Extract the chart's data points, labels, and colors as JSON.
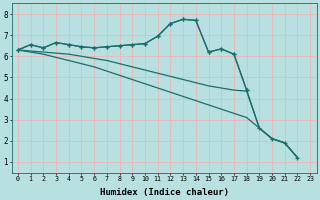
{
  "bg_color": "#b8e0e0",
  "grid_color": "#e8b8b8",
  "line_color": "#1a6e6e",
  "xlabel": "Humidex (Indice chaleur)",
  "xlim": [
    -0.5,
    23.5
  ],
  "ylim": [
    0.5,
    8.5
  ],
  "xticks": [
    0,
    1,
    2,
    3,
    4,
    5,
    6,
    7,
    8,
    9,
    10,
    11,
    12,
    13,
    14,
    15,
    16,
    17,
    18,
    19,
    20,
    21,
    22,
    23
  ],
  "yticks": [
    1,
    2,
    3,
    4,
    5,
    6,
    7,
    8
  ],
  "lines": [
    {
      "x": [
        0,
        1,
        2,
        3,
        4,
        5,
        6,
        7,
        8,
        9,
        10,
        11,
        12,
        13,
        14,
        15,
        16,
        17,
        18
      ],
      "y": [
        6.3,
        6.55,
        6.4,
        6.65,
        6.55,
        6.45,
        6.4,
        6.45,
        6.5,
        6.55,
        6.6,
        6.95,
        7.55,
        7.75,
        7.7,
        6.2,
        6.35,
        6.1,
        4.4
      ],
      "marker": "+"
    },
    {
      "x": [
        0,
        1,
        2,
        3,
        4,
        5,
        6,
        7,
        8,
        9,
        10,
        11,
        12,
        13,
        14,
        15,
        16,
        17,
        18,
        19,
        20,
        21,
        22
      ],
      "y": [
        6.3,
        6.55,
        6.4,
        6.65,
        6.55,
        6.45,
        6.4,
        6.45,
        6.5,
        6.55,
        6.6,
        6.95,
        7.55,
        7.75,
        7.7,
        6.2,
        6.35,
        6.1,
        4.4,
        2.6,
        2.1,
        1.9,
        1.2
      ],
      "marker": "+"
    },
    {
      "x": [
        0,
        1,
        2,
        3,
        4,
        5,
        6,
        7,
        8,
        9,
        10,
        11,
        12,
        13,
        14,
        15,
        16,
        17,
        18,
        19,
        20,
        21,
        22
      ],
      "y": [
        6.3,
        6.25,
        6.2,
        6.15,
        6.1,
        6.0,
        5.9,
        5.8,
        5.65,
        5.5,
        5.35,
        5.2,
        5.05,
        4.9,
        4.75,
        4.6,
        4.5,
        4.4,
        4.35,
        2.6,
        2.1,
        1.9,
        1.2
      ],
      "marker": null
    },
    {
      "x": [
        0,
        1,
        2,
        3,
        4,
        5,
        6,
        7,
        8,
        9,
        10,
        11,
        12,
        13,
        14,
        15,
        16,
        17,
        18,
        19,
        20,
        21,
        22
      ],
      "y": [
        6.3,
        6.2,
        6.1,
        5.95,
        5.8,
        5.65,
        5.5,
        5.3,
        5.1,
        4.9,
        4.7,
        4.5,
        4.3,
        4.1,
        3.9,
        3.7,
        3.5,
        3.3,
        3.1,
        2.6,
        2.1,
        1.9,
        1.2
      ],
      "marker": null
    }
  ]
}
